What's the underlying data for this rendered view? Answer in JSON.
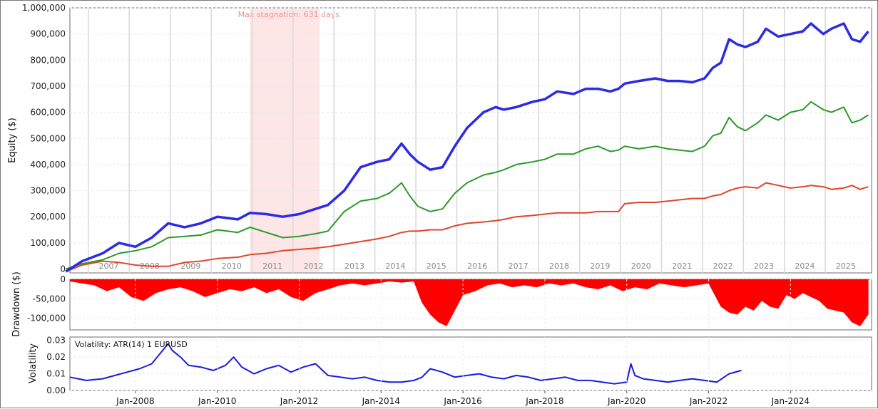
{
  "chart_data": [
    {
      "type": "line",
      "ylabel": "Equity ($)",
      "ylim": [
        -15000,
        1000000
      ],
      "yticks": [
        "1,000,000",
        "900,000",
        "800,000",
        "700,000",
        "600,000",
        "500,000",
        "400,000",
        "300,000",
        "200,000",
        "100,000",
        "0"
      ],
      "year_labels": [
        "2007",
        "2008",
        "2009",
        "2010",
        "2011",
        "2012",
        "2013",
        "2014",
        "2015",
        "2016",
        "2017",
        "2018",
        "2019",
        "2020",
        "2021",
        "2022",
        "2023",
        "2024",
        "2025"
      ],
      "annotation": "Max stagnation: 631 days",
      "stagnation_range": [
        2010.8,
        2012.5
      ],
      "series": [
        {
          "color": "#2b2be6",
          "x": [
            2006.3,
            2006.7,
            2007.2,
            2007.6,
            2008.0,
            2008.4,
            2008.8,
            2009.2,
            2009.6,
            2010.0,
            2010.5,
            2010.8,
            2011.2,
            2011.6,
            2012.0,
            2012.4,
            2012.7,
            2013.1,
            2013.5,
            2013.9,
            2014.2,
            2014.5,
            2014.7,
            2014.9,
            2015.2,
            2015.5,
            2015.8,
            2016.1,
            2016.5,
            2016.8,
            2017.0,
            2017.3,
            2017.7,
            2018.0,
            2018.3,
            2018.7,
            2019.0,
            2019.3,
            2019.6,
            2019.8,
            2019.95,
            2020.3,
            2020.7,
            2021.0,
            2021.3,
            2021.6,
            2021.9,
            2022.1,
            2022.3,
            2022.5,
            2022.7,
            2022.9,
            2023.2,
            2023.4,
            2023.7,
            2024.0,
            2024.3,
            2024.5,
            2024.8,
            2025.0,
            2025.3,
            2025.5,
            2025.7,
            2025.9
          ],
          "y": [
            -10000,
            30000,
            60000,
            100000,
            85000,
            120000,
            175000,
            160000,
            175000,
            200000,
            190000,
            215000,
            210000,
            200000,
            210000,
            230000,
            245000,
            300000,
            390000,
            410000,
            420000,
            480000,
            440000,
            410000,
            380000,
            390000,
            470000,
            540000,
            600000,
            620000,
            610000,
            620000,
            640000,
            650000,
            680000,
            670000,
            690000,
            690000,
            680000,
            690000,
            710000,
            720000,
            730000,
            720000,
            720000,
            715000,
            730000,
            770000,
            790000,
            880000,
            860000,
            850000,
            870000,
            920000,
            890000,
            900000,
            910000,
            940000,
            900000,
            920000,
            940000,
            880000,
            870000,
            910000
          ]
        },
        {
          "color": "#2a9a2a",
          "x": [
            2006.3,
            2006.7,
            2007.2,
            2007.6,
            2008.0,
            2008.4,
            2008.8,
            2009.2,
            2009.6,
            2010.0,
            2010.5,
            2010.8,
            2011.2,
            2011.6,
            2012.0,
            2012.4,
            2012.7,
            2013.1,
            2013.5,
            2013.9,
            2014.2,
            2014.5,
            2014.7,
            2014.9,
            2015.2,
            2015.5,
            2015.8,
            2016.1,
            2016.5,
            2016.8,
            2017.0,
            2017.3,
            2017.7,
            2018.0,
            2018.3,
            2018.7,
            2019.0,
            2019.3,
            2019.6,
            2019.8,
            2019.95,
            2020.3,
            2020.7,
            2021.0,
            2021.3,
            2021.6,
            2021.9,
            2022.1,
            2022.3,
            2022.5,
            2022.7,
            2022.9,
            2023.2,
            2023.4,
            2023.7,
            2024.0,
            2024.3,
            2024.5,
            2024.8,
            2025.0,
            2025.3,
            2025.5,
            2025.7,
            2025.9
          ],
          "y": [
            0,
            20000,
            35000,
            60000,
            70000,
            85000,
            120000,
            125000,
            130000,
            150000,
            140000,
            160000,
            140000,
            120000,
            125000,
            135000,
            145000,
            220000,
            260000,
            270000,
            290000,
            330000,
            280000,
            240000,
            220000,
            230000,
            290000,
            330000,
            360000,
            370000,
            380000,
            400000,
            410000,
            420000,
            440000,
            440000,
            460000,
            470000,
            450000,
            455000,
            470000,
            460000,
            470000,
            460000,
            455000,
            450000,
            470000,
            510000,
            520000,
            580000,
            545000,
            530000,
            560000,
            590000,
            570000,
            600000,
            610000,
            640000,
            610000,
            600000,
            620000,
            560000,
            570000,
            590000
          ]
        },
        {
          "color": "#e0452c",
          "x": [
            2006.3,
            2006.7,
            2007.2,
            2007.6,
            2008.0,
            2008.4,
            2008.8,
            2009.2,
            2009.6,
            2010.0,
            2010.5,
            2010.8,
            2011.2,
            2011.6,
            2012.0,
            2012.4,
            2012.7,
            2013.1,
            2013.5,
            2013.9,
            2014.2,
            2014.5,
            2014.7,
            2014.9,
            2015.2,
            2015.5,
            2015.8,
            2016.1,
            2016.5,
            2016.8,
            2017.0,
            2017.3,
            2017.7,
            2018.0,
            2018.3,
            2018.7,
            2019.0,
            2019.3,
            2019.6,
            2019.8,
            2019.95,
            2020.3,
            2020.7,
            2021.0,
            2021.3,
            2021.6,
            2021.9,
            2022.1,
            2022.3,
            2022.5,
            2022.7,
            2022.9,
            2023.2,
            2023.4,
            2023.7,
            2024.0,
            2024.3,
            2024.5,
            2024.8,
            2025.0,
            2025.3,
            2025.5,
            2025.7,
            2025.9
          ],
          "y": [
            -10000,
            15000,
            30000,
            25000,
            15000,
            10000,
            10000,
            25000,
            30000,
            40000,
            45000,
            55000,
            60000,
            70000,
            75000,
            80000,
            85000,
            95000,
            105000,
            115000,
            125000,
            140000,
            145000,
            145000,
            150000,
            150000,
            165000,
            175000,
            180000,
            185000,
            190000,
            200000,
            205000,
            210000,
            215000,
            215000,
            215000,
            220000,
            220000,
            220000,
            250000,
            255000,
            255000,
            260000,
            265000,
            270000,
            270000,
            280000,
            285000,
            300000,
            310000,
            315000,
            310000,
            330000,
            320000,
            310000,
            315000,
            320000,
            315000,
            305000,
            310000,
            320000,
            305000,
            315000
          ]
        }
      ]
    },
    {
      "type": "area",
      "ylabel": "Drawdown ($)",
      "ylim": [
        -130000,
        0
      ],
      "yticks": [
        "0",
        "-50,000",
        "-100,000"
      ],
      "color": "#ff0000",
      "x": [
        2006.4,
        2007.0,
        2007.3,
        2007.6,
        2007.9,
        2008.2,
        2008.5,
        2008.8,
        2009.1,
        2009.4,
        2009.7,
        2010.0,
        2010.3,
        2010.6,
        2010.9,
        2011.2,
        2011.5,
        2011.8,
        2012.1,
        2012.4,
        2012.7,
        2013.0,
        2013.3,
        2013.6,
        2013.9,
        2014.2,
        2014.5,
        2014.8,
        2015.0,
        2015.2,
        2015.4,
        2015.6,
        2015.8,
        2016.0,
        2016.3,
        2016.6,
        2016.9,
        2017.2,
        2017.5,
        2017.8,
        2018.1,
        2018.4,
        2018.7,
        2019.0,
        2019.3,
        2019.6,
        2019.9,
        2020.2,
        2020.5,
        2020.8,
        2021.1,
        2021.4,
        2021.7,
        2022.0,
        2022.3,
        2022.5,
        2022.7,
        2022.9,
        2023.1,
        2023.3,
        2023.5,
        2023.7,
        2023.9,
        2024.1,
        2024.3,
        2024.5,
        2024.7,
        2024.9,
        2025.1,
        2025.3,
        2025.5,
        2025.7,
        2025.9
      ],
      "values": [
        -5000,
        -15000,
        -30000,
        -20000,
        -45000,
        -55000,
        -35000,
        -25000,
        -20000,
        -30000,
        -45000,
        -35000,
        -25000,
        -30000,
        -20000,
        -35000,
        -25000,
        -45000,
        -55000,
        -35000,
        -25000,
        -15000,
        -10000,
        -15000,
        -10000,
        -5000,
        -8000,
        -5000,
        -60000,
        -90000,
        -110000,
        -120000,
        -80000,
        -40000,
        -30000,
        -15000,
        -10000,
        -20000,
        -15000,
        -20000,
        -10000,
        -15000,
        -10000,
        -20000,
        -25000,
        -15000,
        -30000,
        -20000,
        -25000,
        -10000,
        -15000,
        -20000,
        -15000,
        -10000,
        -70000,
        -85000,
        -90000,
        -70000,
        -80000,
        -55000,
        -70000,
        -75000,
        -40000,
        -50000,
        -35000,
        -45000,
        -55000,
        -75000,
        -80000,
        -85000,
        -110000,
        -120000,
        -90000
      ]
    },
    {
      "type": "line",
      "ylabel": "Volatility",
      "legend_text": "Volatility: ATR(14) 1 EURUSD",
      "ylim": [
        0,
        0.032
      ],
      "yticks": [
        "0.03",
        "0.02",
        "0.01",
        "0.00"
      ],
      "xticks": [
        "Jan-2008",
        "Jan-2010",
        "Jan-2012",
        "Jan-2014",
        "Jan-2016",
        "Jan-2018",
        "Jan-2020",
        "Jan-2022",
        "Jan-2024"
      ],
      "color": "#1a1ae6",
      "x": [
        2006.4,
        2006.8,
        2007.2,
        2007.5,
        2007.8,
        2008.1,
        2008.4,
        2008.6,
        2008.8,
        2008.9,
        2009.1,
        2009.3,
        2009.6,
        2009.9,
        2010.2,
        2010.4,
        2010.6,
        2010.9,
        2011.2,
        2011.5,
        2011.8,
        2012.1,
        2012.4,
        2012.7,
        2013.0,
        2013.3,
        2013.6,
        2013.9,
        2014.2,
        2014.5,
        2014.8,
        2015.0,
        2015.2,
        2015.5,
        2015.8,
        2016.1,
        2016.4,
        2016.7,
        2017.0,
        2017.3,
        2017.6,
        2017.9,
        2018.2,
        2018.5,
        2018.8,
        2019.1,
        2019.4,
        2019.7,
        2020.0,
        2020.1,
        2020.2,
        2020.4,
        2020.7,
        2021.0,
        2021.3,
        2021.6,
        2021.9,
        2022.2,
        2022.5,
        2022.8
      ],
      "values": [
        0.008,
        0.006,
        0.007,
        0.009,
        0.011,
        0.013,
        0.016,
        0.022,
        0.028,
        0.024,
        0.02,
        0.015,
        0.014,
        0.012,
        0.015,
        0.02,
        0.014,
        0.01,
        0.013,
        0.015,
        0.011,
        0.014,
        0.016,
        0.009,
        0.008,
        0.007,
        0.008,
        0.006,
        0.005,
        0.005,
        0.006,
        0.008,
        0.013,
        0.011,
        0.008,
        0.009,
        0.01,
        0.008,
        0.007,
        0.009,
        0.008,
        0.006,
        0.007,
        0.008,
        0.006,
        0.006,
        0.005,
        0.004,
        0.005,
        0.016,
        0.009,
        0.007,
        0.006,
        0.005,
        0.006,
        0.007,
        0.006,
        0.005,
        0.01,
        0.012
      ]
    }
  ]
}
